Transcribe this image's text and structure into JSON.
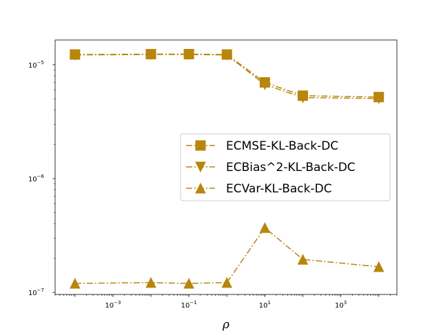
{
  "chart_data": {
    "type": "line",
    "title": "",
    "xlabel": "ρ",
    "ylabel": "",
    "xscale": "log",
    "yscale": "log",
    "xlim": [
      3e-05,
      30000
    ],
    "ylim": [
      9.6e-08,
      1.65e-05
    ],
    "xticks": [
      {
        "value": 0.001,
        "base": "10",
        "exp": "−3"
      },
      {
        "value": 0.1,
        "base": "10",
        "exp": "−1"
      },
      {
        "value": 10,
        "base": "10",
        "exp": "1"
      },
      {
        "value": 1000,
        "base": "10",
        "exp": "3"
      }
    ],
    "yticks": [
      {
        "value": 1e-07,
        "base": "10",
        "exp": "−7"
      },
      {
        "value": 1e-06,
        "base": "10",
        "exp": "−6"
      },
      {
        "value": 1e-05,
        "base": "10",
        "exp": "−5"
      }
    ],
    "x": [
      0.0001,
      0.01,
      0.1,
      1,
      10,
      100,
      10000
    ],
    "series": [
      {
        "name": "ECMSE-KL-Back-DC",
        "marker": "square",
        "color": "#b8860b",
        "values": [
          1.23e-05,
          1.24e-05,
          1.24e-05,
          1.23e-05,
          7e-06,
          5.35e-06,
          5.2e-06
        ]
      },
      {
        "name": "ECBias^2-KL-Back-DC",
        "marker": "triangle-down",
        "color": "#b8860b",
        "values": [
          1.22e-05,
          1.23e-05,
          1.23e-05,
          1.22e-05,
          6.7e-06,
          5.15e-06,
          5.05e-06
        ]
      },
      {
        "name": "ECVar-KL-Back-DC",
        "marker": "triangle-up",
        "color": "#b8860b",
        "values": [
          1.2e-07,
          1.22e-07,
          1.2e-07,
          1.22e-07,
          3.7e-07,
          1.95e-07,
          1.68e-07
        ]
      }
    ],
    "legend_position": "center-right",
    "grid": false
  }
}
